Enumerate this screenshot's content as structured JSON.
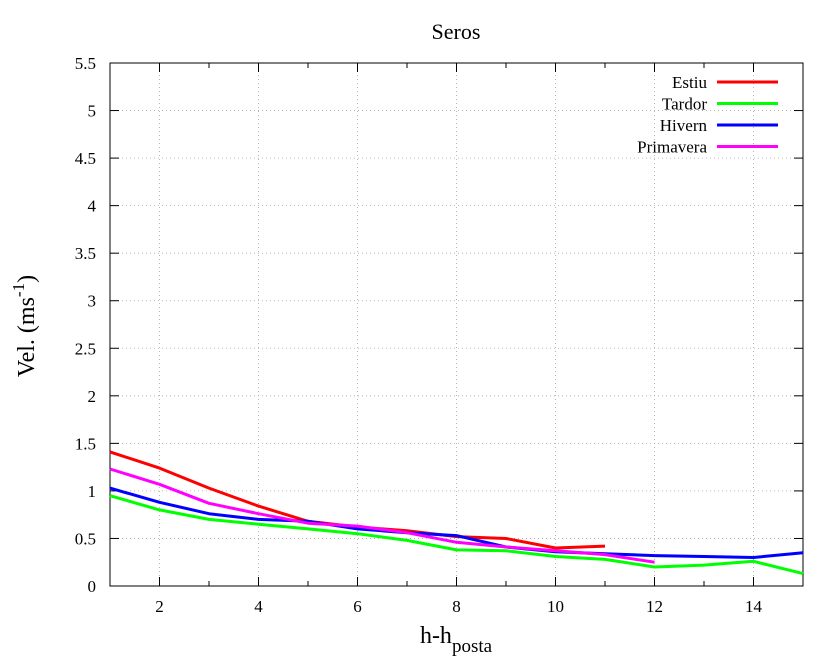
{
  "chart_data": {
    "type": "line",
    "title": "Seros",
    "xlabel": {
      "main": "h-h",
      "sub": "posta"
    },
    "ylabel": {
      "main": "Vel. (ms",
      "sup": "-1",
      "end": ")"
    },
    "xlim": [
      1,
      15
    ],
    "ylim": [
      0,
      5.5
    ],
    "xticks": [
      2,
      4,
      6,
      8,
      10,
      12,
      14
    ],
    "yticks": [
      0,
      0.5,
      1,
      1.5,
      2,
      2.5,
      3,
      3.5,
      4,
      4.5,
      5,
      5.5
    ],
    "ytick_labels": [
      "0",
      "0.5",
      "1",
      "1.5",
      "2",
      "2.5",
      "3",
      "3.5",
      "4",
      "4.5",
      "5",
      "5.5"
    ],
    "grid": true,
    "legend_position": "top-right",
    "series": [
      {
        "name": "Estiu",
        "color": "#ff0000",
        "x": [
          1,
          2,
          3,
          4,
          5,
          6,
          7,
          8,
          9,
          10,
          11
        ],
        "y": [
          1.41,
          1.24,
          1.03,
          0.84,
          0.68,
          0.62,
          0.58,
          0.52,
          0.5,
          0.4,
          0.42
        ]
      },
      {
        "name": "Tardor",
        "color": "#00ff00",
        "x": [
          1,
          2,
          3,
          4,
          5,
          6,
          7,
          8,
          9,
          10,
          11,
          12,
          13,
          14,
          15
        ],
        "y": [
          0.95,
          0.8,
          0.7,
          0.65,
          0.6,
          0.55,
          0.48,
          0.38,
          0.37,
          0.31,
          0.28,
          0.2,
          0.22,
          0.26,
          0.13
        ]
      },
      {
        "name": "Hivern",
        "color": "#0000ff",
        "x": [
          1,
          2,
          3,
          4,
          5,
          6,
          7,
          8,
          9,
          10,
          11,
          12,
          13,
          14,
          15
        ],
        "y": [
          1.03,
          0.88,
          0.76,
          0.7,
          0.68,
          0.6,
          0.56,
          0.53,
          0.41,
          0.36,
          0.34,
          0.32,
          0.31,
          0.3,
          0.35
        ]
      },
      {
        "name": "Primavera",
        "color": "#ff00ff",
        "x": [
          1,
          2,
          3,
          4,
          5,
          6,
          7,
          8,
          9,
          10,
          11,
          12
        ],
        "y": [
          1.23,
          1.07,
          0.87,
          0.76,
          0.66,
          0.63,
          0.56,
          0.46,
          0.41,
          0.37,
          0.33,
          0.25
        ]
      }
    ]
  }
}
